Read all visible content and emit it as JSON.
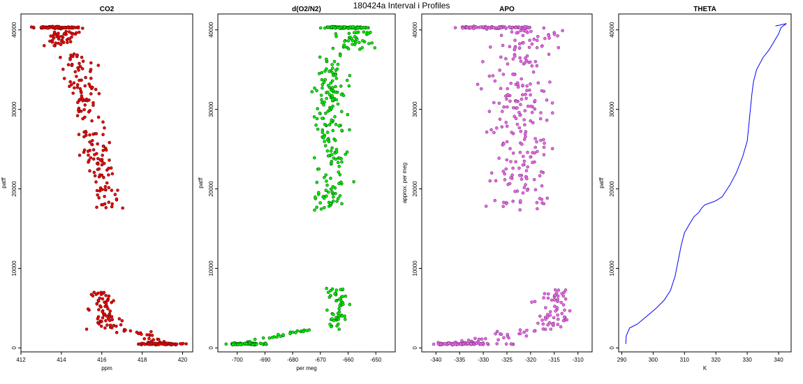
{
  "figure": {
    "title": "180424a   Interval i Profiles"
  },
  "chart_data": [
    {
      "type": "scatter",
      "title": "CO2",
      "xlabel": "ppm",
      "ylabel": "patff",
      "xlim": [
        412,
        420.5
      ],
      "ylim": [
        -500,
        42000
      ],
      "xticks": [
        412,
        414,
        416,
        418,
        420
      ],
      "yticks": [
        0,
        10000,
        20000,
        30000,
        40000
      ],
      "color": "#ee0000",
      "edge": "#6b1010",
      "segments": [
        {
          "name": "upper-cluster",
          "ymin": 38000,
          "ymax": 39800,
          "xc": [
            413.8,
            414.4
          ],
          "xs": 0.4,
          "n": 45
        },
        {
          "name": "upper-slope",
          "ymin": 17500,
          "ymax": 37000,
          "xc": [
            416.3,
            414.7
          ],
          "xs": 0.35,
          "n": 170
        },
        {
          "name": "lower-cluster",
          "ymin": 2300,
          "ymax": 7300,
          "xc": [
            416.3,
            415.9
          ],
          "xs": 0.3,
          "n": 70
        },
        {
          "name": "low-tail",
          "ymin": 600,
          "ymax": 2300,
          "xc": [
            419.0,
            417.2
          ],
          "xs": 0.35,
          "n": 25
        }
      ],
      "bands": [
        {
          "y": 40300,
          "xmin": 412.5,
          "xmax": 415.2,
          "dense": [
            413.0,
            414.6
          ]
        },
        {
          "y": 500,
          "xmin": 417.8,
          "xmax": 420.2,
          "dense": [
            418.3,
            419.5
          ]
        }
      ]
    },
    {
      "type": "scatter",
      "title": "d(O2/N2)",
      "xlabel": "per meg",
      "ylabel": "patff",
      "xlim": [
        -707,
        -643
      ],
      "ylim": [
        -500,
        42000
      ],
      "xticks": [
        -700,
        -690,
        -680,
        -670,
        -660,
        -650
      ],
      "yticks": [
        0,
        10000,
        20000,
        30000,
        40000
      ],
      "color": "#00ee00",
      "edge": "#0c5c0c",
      "segments": [
        {
          "name": "top-cluster",
          "ymin": 37500,
          "ymax": 39800,
          "xc": [
            -660,
            -656
          ],
          "xs": 3.0,
          "n": 40
        },
        {
          "name": "mid-column",
          "ymin": 17300,
          "ymax": 37000,
          "xc": [
            -667,
            -666
          ],
          "xs": 2.8,
          "n": 190
        },
        {
          "name": "lower-column",
          "ymin": 2300,
          "ymax": 7500,
          "xc": [
            -664,
            -664
          ],
          "xs": 1.8,
          "n": 55
        },
        {
          "name": "low-tail",
          "ymin": 600,
          "ymax": 2300,
          "xc": [
            -697,
            -675
          ],
          "xs": 2.0,
          "n": 25
        }
      ],
      "bands": [
        {
          "y": 40300,
          "xmin": -670,
          "xmax": -652,
          "dense": [
            -668,
            -655
          ]
        },
        {
          "y": 500,
          "xmin": -705,
          "xmax": -688,
          "dense": [
            -702,
            -693
          ]
        }
      ]
    },
    {
      "type": "scatter",
      "title": "APO",
      "xlabel": "",
      "ylabel": "approx. per meg",
      "xlim": [
        -343,
        -307
      ],
      "ylim": [
        -500,
        42000
      ],
      "xticks": [
        -340,
        -335,
        -330,
        -325,
        -320,
        -315,
        -310
      ],
      "yticks": [
        0,
        10000,
        20000,
        30000,
        40000
      ],
      "color": "#ee66ee",
      "edge": "#7a3a7a",
      "segments": [
        {
          "name": "top-scatter",
          "ymin": 37500,
          "ymax": 40000,
          "xc": [
            -322,
            -318
          ],
          "xs": 3.5,
          "n": 40
        },
        {
          "name": "mid-column",
          "ymin": 17300,
          "ymax": 37000,
          "xc": [
            -322,
            -323
          ],
          "xs": 3.2,
          "n": 200
        },
        {
          "name": "lower-cluster",
          "ymin": 2300,
          "ymax": 7300,
          "xc": [
            -316,
            -315
          ],
          "xs": 1.7,
          "n": 60
        },
        {
          "name": "low-tail",
          "ymin": 600,
          "ymax": 2300,
          "xc": [
            -333,
            -320
          ],
          "xs": 2.5,
          "n": 30
        }
      ],
      "bands": [
        {
          "y": 40300,
          "xmin": -336,
          "xmax": -317,
          "dense": [
            -334,
            -320
          ]
        },
        {
          "y": 500,
          "xmin": -341,
          "xmax": -323,
          "dense": [
            -340,
            -330
          ]
        }
      ]
    },
    {
      "type": "line",
      "title": "THETA",
      "xlabel": "K",
      "ylabel": "patff",
      "xlim": [
        289,
        344
      ],
      "ylim": [
        -500,
        42000
      ],
      "xticks": [
        290,
        300,
        310,
        320,
        330,
        340
      ],
      "yticks": [
        0,
        10000,
        20000,
        30000,
        40000
      ],
      "color": "#0000ff",
      "x": [
        291.3,
        291.4,
        292.5,
        295,
        298,
        301,
        303.5,
        305.5,
        307,
        308,
        309,
        310,
        311.5,
        313,
        314.5,
        315.5,
        316.5,
        318,
        320,
        322,
        324.5,
        326.5,
        327.5,
        328.5,
        330,
        330.5,
        331,
        331.5,
        332,
        333,
        335,
        337,
        338.5,
        340,
        340.8,
        342.5,
        340.5,
        339
      ],
      "y": [
        500,
        1500,
        2500,
        3000,
        4000,
        5000,
        6000,
        7200,
        9000,
        11000,
        13000,
        14500,
        15500,
        16500,
        17000,
        17600,
        18000,
        18200,
        18500,
        19000,
        20500,
        22000,
        23000,
        24000,
        26000,
        28000,
        30000,
        32000,
        33500,
        35000,
        36500,
        37500,
        38500,
        39500,
        40300,
        40800,
        40600,
        40500
      ]
    }
  ]
}
